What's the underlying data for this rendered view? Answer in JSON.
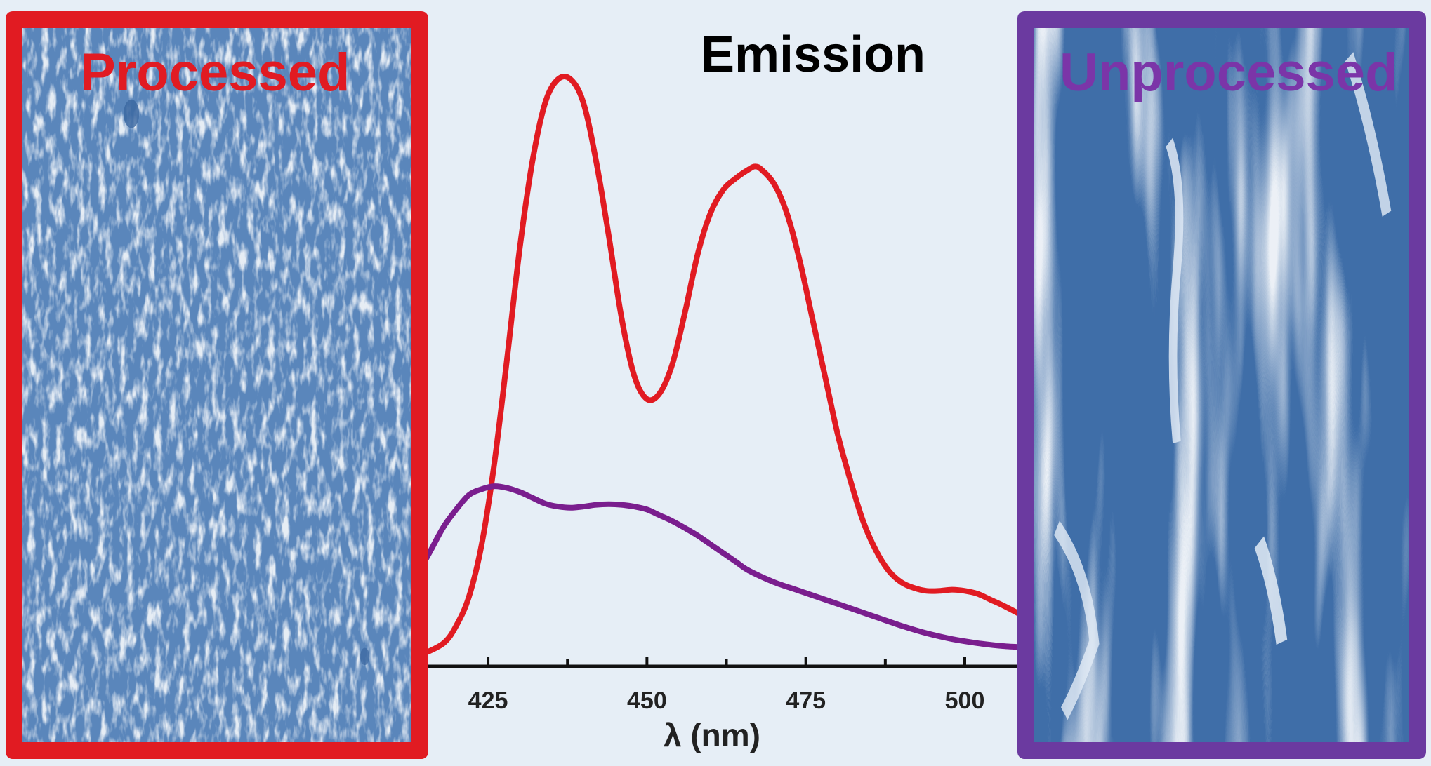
{
  "chart_data": {
    "type": "line",
    "title": "Emission",
    "xlabel": "λ (nm)",
    "ylabel": "",
    "xlim": [
      414.5,
      509.5
    ],
    "ylim": [
      0,
      1.05
    ],
    "x_ticks": [
      425,
      450,
      475,
      500
    ],
    "minor_ticks": [
      437.5,
      462.5,
      487.5
    ],
    "grid": false,
    "series": [
      {
        "color": "#e11b22",
        "x": [
          414.5,
          418,
          420,
          422,
          424,
          426,
          428,
          430,
          432,
          434,
          436,
          438,
          440,
          442,
          444,
          446,
          448,
          450,
          452,
          454,
          456,
          458,
          460,
          462,
          464,
          466,
          467,
          468,
          470,
          472,
          474,
          476,
          478,
          480,
          482,
          484,
          486,
          488,
          490,
          492,
          494,
          496,
          498,
          500,
          502,
          504,
          506,
          509.5
        ],
        "y": [
          0.02,
          0.04,
          0.07,
          0.12,
          0.21,
          0.35,
          0.53,
          0.72,
          0.87,
          0.97,
          1.01,
          1.01,
          0.97,
          0.87,
          0.74,
          0.6,
          0.5,
          0.46,
          0.47,
          0.52,
          0.61,
          0.71,
          0.78,
          0.82,
          0.84,
          0.855,
          0.86,
          0.855,
          0.83,
          0.78,
          0.7,
          0.6,
          0.5,
          0.4,
          0.32,
          0.25,
          0.2,
          0.165,
          0.145,
          0.135,
          0.13,
          0.13,
          0.132,
          0.13,
          0.125,
          0.115,
          0.105,
          0.085
        ]
      },
      {
        "color": "#7a1e8e",
        "x": [
          414.5,
          416,
          418,
          420,
          422,
          424,
          426,
          428,
          430,
          432,
          434,
          436,
          438,
          440,
          442,
          444,
          446,
          448,
          450,
          452,
          454,
          456,
          458,
          460,
          462,
          464,
          466,
          470,
          474,
          478,
          482,
          486,
          490,
          494,
          498,
          502,
          506,
          509.5
        ],
        "y": [
          0.17,
          0.2,
          0.24,
          0.27,
          0.295,
          0.305,
          0.31,
          0.307,
          0.3,
          0.29,
          0.28,
          0.275,
          0.273,
          0.275,
          0.278,
          0.279,
          0.278,
          0.275,
          0.27,
          0.26,
          0.25,
          0.238,
          0.225,
          0.21,
          0.195,
          0.18,
          0.165,
          0.145,
          0.13,
          0.115,
          0.1,
          0.085,
          0.07,
          0.057,
          0.047,
          0.04,
          0.035,
          0.033
        ]
      }
    ]
  },
  "images": {
    "left": {
      "label": "Processed",
      "color": "#e11b22"
    },
    "right": {
      "label": "Unprocessed",
      "color": "#7b35a8"
    }
  }
}
